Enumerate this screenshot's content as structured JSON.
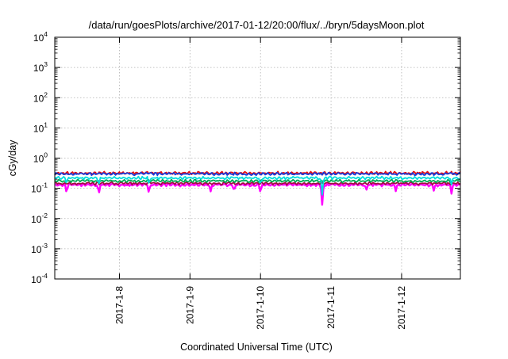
{
  "chart_data": {
    "type": "line",
    "title": "/data/run/goesPlots/archive/2017-01-12/20:00/flux/../bryn/5daysMoon.plot",
    "xlabel": "Coordinated Universal Time (UTC)",
    "ylabel": "cGy/day",
    "yscale": "log",
    "ylim": [
      0.0001,
      10000
    ],
    "xlim": [
      "2017-01-07 02:00",
      "2017-01-12 20:00"
    ],
    "grid": true,
    "y_ticks": [
      {
        "value": 0.0001,
        "base": "10",
        "exp": "-4"
      },
      {
        "value": 0.001,
        "base": "10",
        "exp": "-3"
      },
      {
        "value": 0.01,
        "base": "10",
        "exp": "-2"
      },
      {
        "value": 0.1,
        "base": "10",
        "exp": "-1"
      },
      {
        "value": 1,
        "base": "10",
        "exp": "0"
      },
      {
        "value": 10,
        "base": "10",
        "exp": "1"
      },
      {
        "value": 100,
        "base": "10",
        "exp": "2"
      },
      {
        "value": 1000,
        "base": "10",
        "exp": "3"
      },
      {
        "value": 10000,
        "base": "10",
        "exp": "4"
      }
    ],
    "x_ticks": [
      {
        "value": "2017-01-08",
        "label": "2017-1-8"
      },
      {
        "value": "2017-01-09",
        "label": "2017-1-9"
      },
      {
        "value": "2017-01-10",
        "label": "2017-1-10"
      },
      {
        "value": "2017-01-11",
        "label": "2017-1-11"
      },
      {
        "value": "2017-01-12",
        "label": "2017-1-12"
      }
    ],
    "series": [
      {
        "color": "#ff00ff",
        "base": 0.13,
        "dips": [
          [
            "2017-01-07 06:00",
            0.07
          ],
          [
            "2017-01-07 17:00",
            0.065
          ],
          [
            "2017-01-08 10:00",
            0.07
          ],
          [
            "2017-01-09 07:00",
            0.075
          ],
          [
            "2017-01-09 15:00",
            0.08
          ],
          [
            "2017-01-10 00:00",
            0.07
          ],
          [
            "2017-01-10 21:00",
            0.028
          ],
          [
            "2017-01-11 12:00",
            0.085
          ],
          [
            "2017-01-11 22:00",
            0.08
          ],
          [
            "2017-01-12 11:00",
            0.08
          ],
          [
            "2017-01-12 17:00",
            0.065
          ]
        ]
      },
      {
        "color": "#a01040",
        "base": 0.145,
        "dips": []
      },
      {
        "color": "#00aa55",
        "base": 0.175,
        "dips": []
      },
      {
        "color": "#00dddd",
        "base": 0.22,
        "dips": [
          [
            "2017-01-07 06:00",
            0.14
          ],
          [
            "2017-01-07 17:00",
            0.13
          ],
          [
            "2017-01-08 10:00",
            0.14
          ],
          [
            "2017-01-10 00:00",
            0.13
          ],
          [
            "2017-01-10 21:00",
            0.06
          ],
          [
            "2017-01-12 17:00",
            0.13
          ]
        ]
      },
      {
        "color": "#e81010",
        "base": 0.32,
        "dips": []
      },
      {
        "color": "#1a3ad8",
        "base": 0.3,
        "dips": []
      }
    ]
  }
}
